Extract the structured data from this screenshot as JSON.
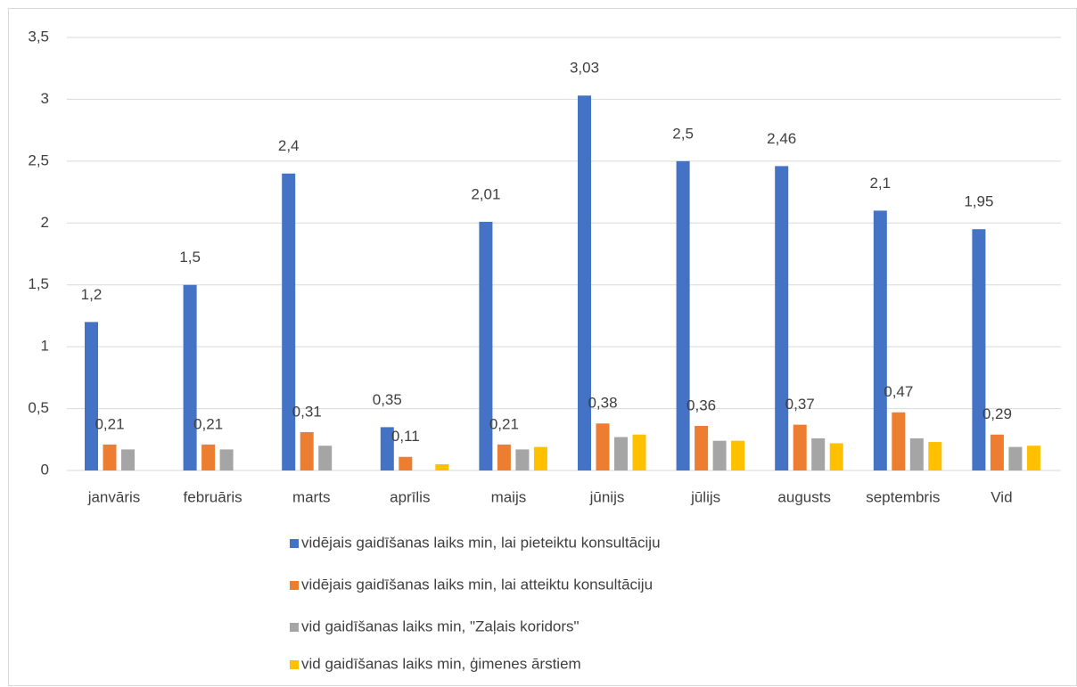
{
  "chart_data": {
    "type": "bar",
    "categories": [
      "janvāris",
      "februāris",
      "marts",
      "aprīlis",
      "maijs",
      "jūnijs",
      "jūlijs",
      "augusts",
      "septembris",
      "Vid"
    ],
    "series": [
      {
        "name": "vidējais gaidīšanas laiks min, lai pieteiktu  konsultāciju",
        "color": "#4472c4",
        "values": [
          1.2,
          1.5,
          2.4,
          0.35,
          2.01,
          3.03,
          2.5,
          2.46,
          2.1,
          1.95
        ],
        "value_labels": [
          "1,2",
          "1,5",
          "2,4",
          "0,35",
          "2,01",
          "3,03",
          "2,5",
          "2,46",
          "2,1",
          "1,95"
        ]
      },
      {
        "name": "vidējais gaidīšanas laiks min, lai atteiktu   konsultāciju",
        "color": "#ed7d31",
        "values": [
          0.21,
          0.21,
          0.31,
          0.11,
          0.21,
          0.38,
          0.36,
          0.37,
          0.47,
          0.29
        ],
        "value_labels": [
          "0,21",
          "0,21",
          "0,31",
          "0,11",
          "0,21",
          "0,38",
          "0,36",
          "0,37",
          "0,47",
          "0,29"
        ]
      },
      {
        "name": "vid gaidīšanas laiks min, \"Zaļais koridors\"",
        "color": "#a5a5a5",
        "values": [
          0.17,
          0.17,
          0.2,
          null,
          0.17,
          0.27,
          0.24,
          0.26,
          0.26,
          0.19
        ]
      },
      {
        "name": "vid gaidīšanas laiks min, ģimenes ārstiem",
        "color": "#ffc000",
        "values": [
          null,
          null,
          null,
          0.05,
          0.19,
          0.29,
          0.24,
          0.22,
          0.23,
          0.2
        ]
      }
    ],
    "ylim": [
      0,
      3.5
    ],
    "yticks": [
      0,
      {
        "value": 0.5,
        "label": "0,5"
      },
      1,
      {
        "value": 1.5,
        "label": "1,5"
      },
      2,
      {
        "value": 2.5,
        "label": "2,5"
      },
      3,
      {
        "value": 3.5,
        "label": "3,5"
      }
    ],
    "grid": true,
    "legend": "bottom"
  }
}
